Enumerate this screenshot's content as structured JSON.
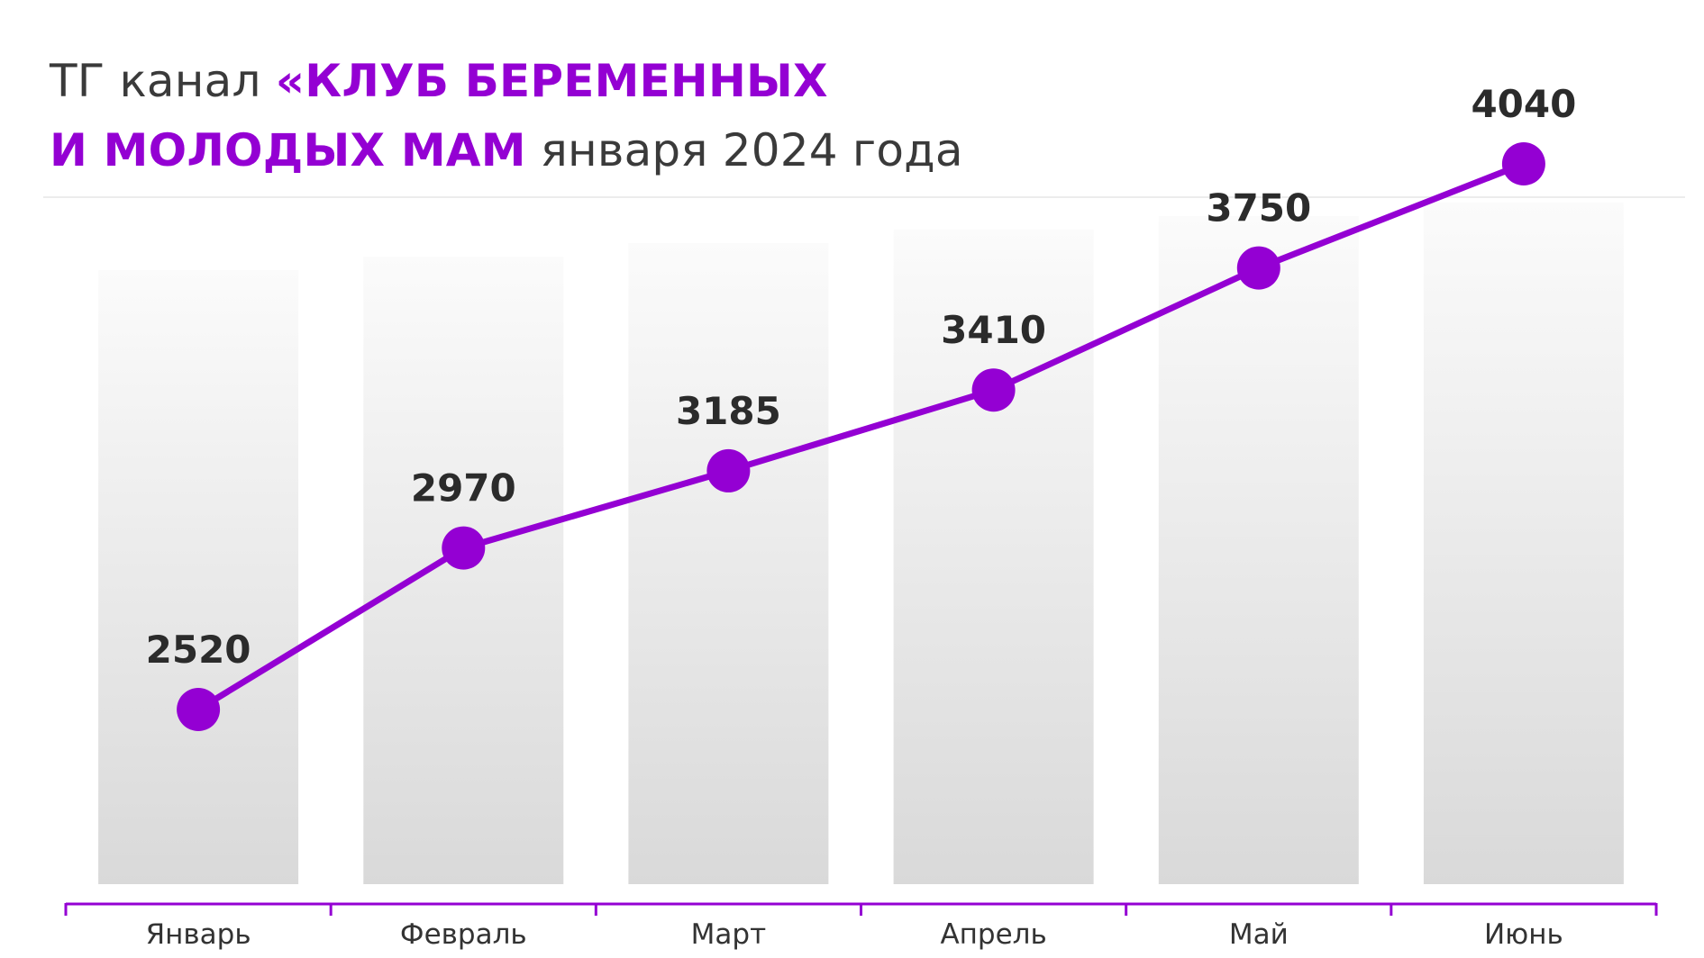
{
  "header": {
    "title_prefix": "ТГ канал ",
    "title_accent_1": "«КЛУБ БЕРЕМЕННЫХ",
    "title_accent_2": "И МОЛОДЫХ МАМ",
    "title_suffix": " января 2024 года"
  },
  "colors": {
    "accent": "#9400d3",
    "text": "#2b2b2b",
    "column_top": "#fbfbfb",
    "column_bottom": "#d9d9d9"
  },
  "chart_data": {
    "type": "line",
    "categories": [
      "Январь",
      "Февраль",
      "Март",
      "Апрель",
      "Май",
      "Июнь"
    ],
    "values": [
      2520,
      2970,
      3185,
      3410,
      3750,
      4040
    ],
    "data_labels": [
      "2520",
      "2970",
      "3185",
      "3410",
      "3750",
      "4040"
    ],
    "title": "ТГ канал «КЛУБ БЕРЕМЕННЫХ И МОЛОДЫХ МАМ января 2024 года",
    "xlabel": "",
    "ylabel": "",
    "grid": false,
    "legend": "none"
  }
}
